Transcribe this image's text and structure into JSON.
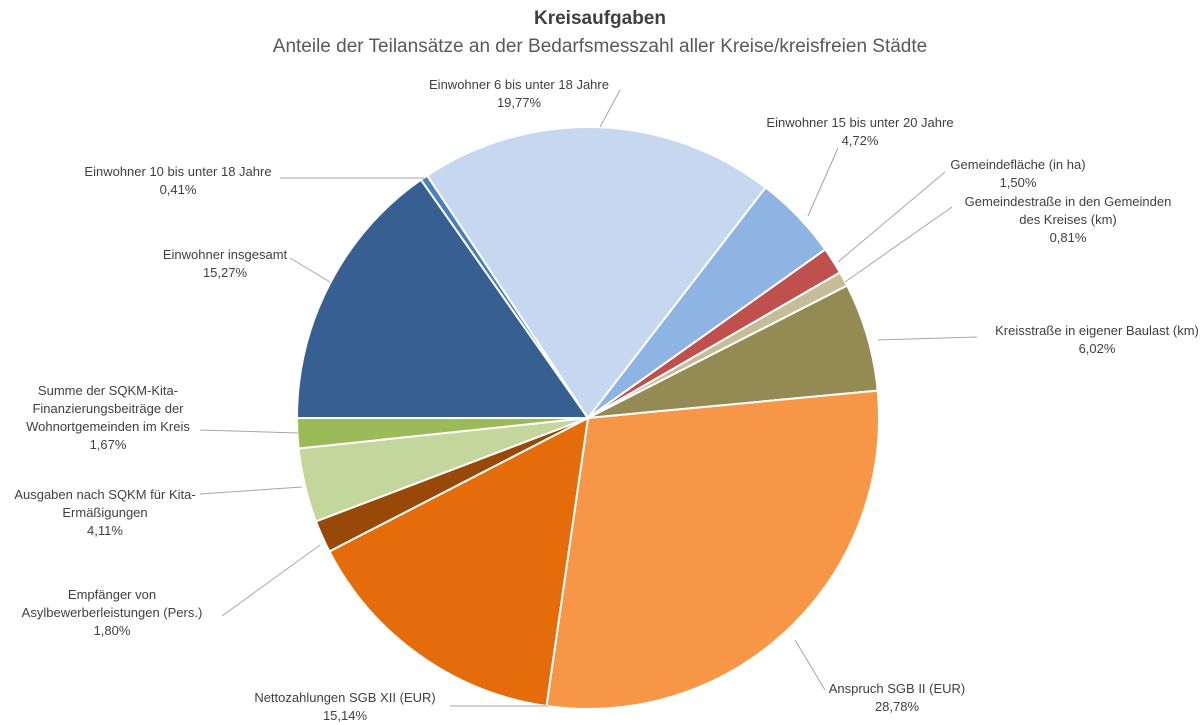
{
  "chart_data": {
    "type": "pie",
    "title": "Kreisaufgaben",
    "subtitle": "Anteile der Teilansätze an der Bedarfsmesszahl aller Kreise/kreisfreien Städte",
    "categories": [
      "Einwohner insgesamt",
      "Einwohner 10 bis unter 18 Jahre",
      "Einwohner 6 bis unter 18 Jahre",
      "Einwohner 15 bis unter 20 Jahre",
      "Gemeindefläche (in ha)",
      "Gemeindestraße in den Gemeinden des Kreises (km)",
      "Kreisstraße in eigener Baulast (km)",
      "Anspruch SGB II (EUR)",
      "Nettozahlungen SGB XII (EUR)",
      "Empfänger von Asylbewerberleistungen (Pers.)",
      "Ausgaben nach SQKM für Kita-Ermäßigungen",
      "Summe der SQKM-Kita-Finanzierungsbeiträge der Wohnortgemeinden im Kreis"
    ],
    "values": [
      15.27,
      0.41,
      19.77,
      4.72,
      1.5,
      0.81,
      6.02,
      28.78,
      15.14,
      1.8,
      4.11,
      1.67
    ],
    "value_labels": [
      "15,27%",
      "0,41%",
      "19,77%",
      "4,72%",
      "1,50%",
      "0,81%",
      "6,02%",
      "28,78%",
      "15,14%",
      "1,80%",
      "4,11%",
      "1,67%"
    ],
    "colors": [
      "#375f91",
      "#4a7fc1",
      "#c6d8f0",
      "#8eb4e3",
      "#c0504d",
      "#c4bd97",
      "#948a54",
      "#f79646",
      "#e46c0a",
      "#984807",
      "#c3d69b",
      "#9bbb59"
    ]
  }
}
